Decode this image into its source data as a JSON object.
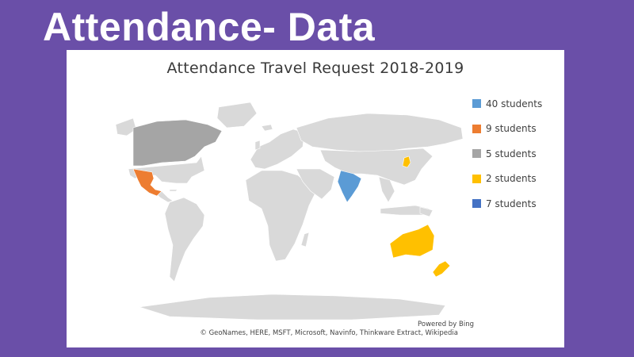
{
  "slide": {
    "title": "Attendance- Data"
  },
  "map": {
    "title": "Attendance Travel Request 2018-2019",
    "base_color": "#d9d9d9",
    "legend": [
      {
        "label": "40 students",
        "color": "#5b9bd5"
      },
      {
        "label": "9 students",
        "color": "#ed7d31"
      },
      {
        "label": "5 students",
        "color": "#a5a5a5"
      },
      {
        "label": "2 students",
        "color": "#ffc000"
      },
      {
        "label": "7 students",
        "color": "#4472c4"
      }
    ],
    "regions": [
      {
        "name": "India",
        "category": "40 students"
      },
      {
        "name": "Mexico",
        "category": "9 students"
      },
      {
        "name": "Canada",
        "category": "5 students"
      },
      {
        "name": "Australia",
        "category": "2 students"
      },
      {
        "name": "New Zealand",
        "category": "2 students"
      },
      {
        "name": "Japan",
        "category": "2 students"
      }
    ],
    "powered_by": "Powered by Bing",
    "sources": "© GeoNames, HERE, MSFT, Microsoft, Navinfo, Thinkware Extract, Wikipedia"
  }
}
